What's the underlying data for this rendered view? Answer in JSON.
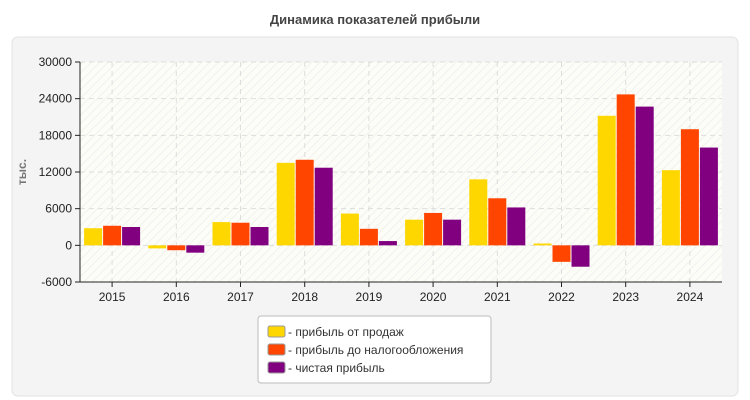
{
  "chart_data": {
    "type": "bar",
    "title": "Динамика показателей прибыли",
    "ylabel": "тыс.",
    "xlabel": "",
    "categories": [
      "2015",
      "2016",
      "2017",
      "2018",
      "2019",
      "2020",
      "2021",
      "2022",
      "2023",
      "2024"
    ],
    "ylim": [
      -6000,
      30000
    ],
    "yticks": [
      -6000,
      0,
      6000,
      12000,
      18000,
      24000,
      30000
    ],
    "grid": true,
    "legend_position": "bottom",
    "series": [
      {
        "name": "- прибыль от продаж",
        "color": "#FFD700",
        "values": [
          2800,
          -500,
          3800,
          13500,
          5200,
          4200,
          10800,
          300,
          21200,
          12300
        ]
      },
      {
        "name": "- прибыль до налогообложения",
        "color": "#FF4500",
        "values": [
          3200,
          -800,
          3700,
          14000,
          2700,
          5300,
          7700,
          -2700,
          24700,
          19000
        ]
      },
      {
        "name": "- чистая прибыль",
        "color": "#800080",
        "values": [
          3000,
          -1200,
          3000,
          12700,
          700,
          4200,
          6200,
          -3500,
          22700,
          16000
        ]
      }
    ]
  }
}
